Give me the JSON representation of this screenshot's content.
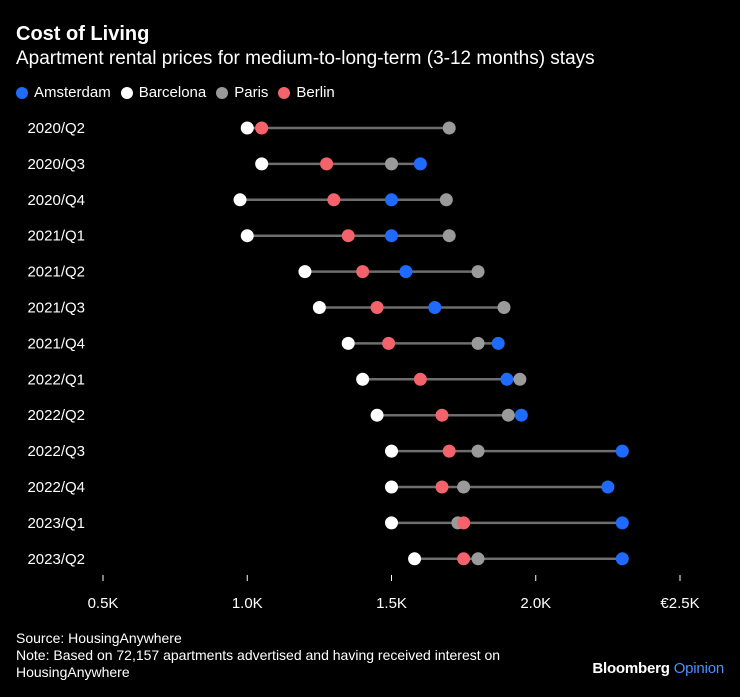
{
  "header": {
    "title": "Cost of Living",
    "subtitle": "Apartment rental prices for medium-to-long-term (3-12 months) stays"
  },
  "legend": [
    {
      "name": "Amsterdam",
      "color": "#1f6bff"
    },
    {
      "name": "Barcelona",
      "color": "#ffffff"
    },
    {
      "name": "Paris",
      "color": "#9a9a9a"
    },
    {
      "name": "Berlin",
      "color": "#f4636b"
    }
  ],
  "chart_data": {
    "type": "dumbbell",
    "title": "Cost of Living",
    "subtitle": "Apartment rental prices for medium-to-long-term (3-12 months) stays",
    "xlim": [
      500,
      2500
    ],
    "xticks": [
      500,
      1000,
      1500,
      2000,
      2500
    ],
    "xtick_labels": [
      "0.5K",
      "1.0K",
      "1.5K",
      "2.0K",
      "€2.5K"
    ],
    "categories": [
      "2020/Q2",
      "2020/Q3",
      "2020/Q4",
      "2021/Q1",
      "2021/Q2",
      "2021/Q3",
      "2021/Q4",
      "2022/Q1",
      "2022/Q2",
      "2022/Q3",
      "2022/Q4",
      "2023/Q1",
      "2023/Q2"
    ],
    "series": [
      {
        "name": "Barcelona",
        "color": "#ffffff",
        "values": [
          1000,
          1050,
          975,
          1000,
          1200,
          1250,
          1350,
          1400,
          1450,
          1500,
          1500,
          1500,
          1580
        ]
      },
      {
        "name": "Paris",
        "color": "#9a9a9a",
        "values": [
          1700,
          1500,
          1690,
          1700,
          1800,
          1890,
          1800,
          1945,
          1905,
          1800,
          1750,
          1730,
          1800
        ]
      },
      {
        "name": "Berlin",
        "color": "#f4636b",
        "values": [
          1050,
          1275,
          1300,
          1350,
          1400,
          1450,
          1490,
          1600,
          1675,
          1700,
          1675,
          1750,
          1750
        ]
      },
      {
        "name": "Amsterdam",
        "color": "#1f6bff",
        "values": [
          null,
          1600,
          1500,
          1500,
          1550,
          1650,
          1870,
          1900,
          1950,
          2300,
          2250,
          2300,
          2300
        ]
      }
    ]
  },
  "footer": {
    "source": "Source: HousingAnywhere",
    "note": "Note: Based on 72,157 apartments advertised and having received interest on HousingAnywhere"
  },
  "brand": {
    "name": "Bloomberg",
    "suffix": "Opinion"
  }
}
